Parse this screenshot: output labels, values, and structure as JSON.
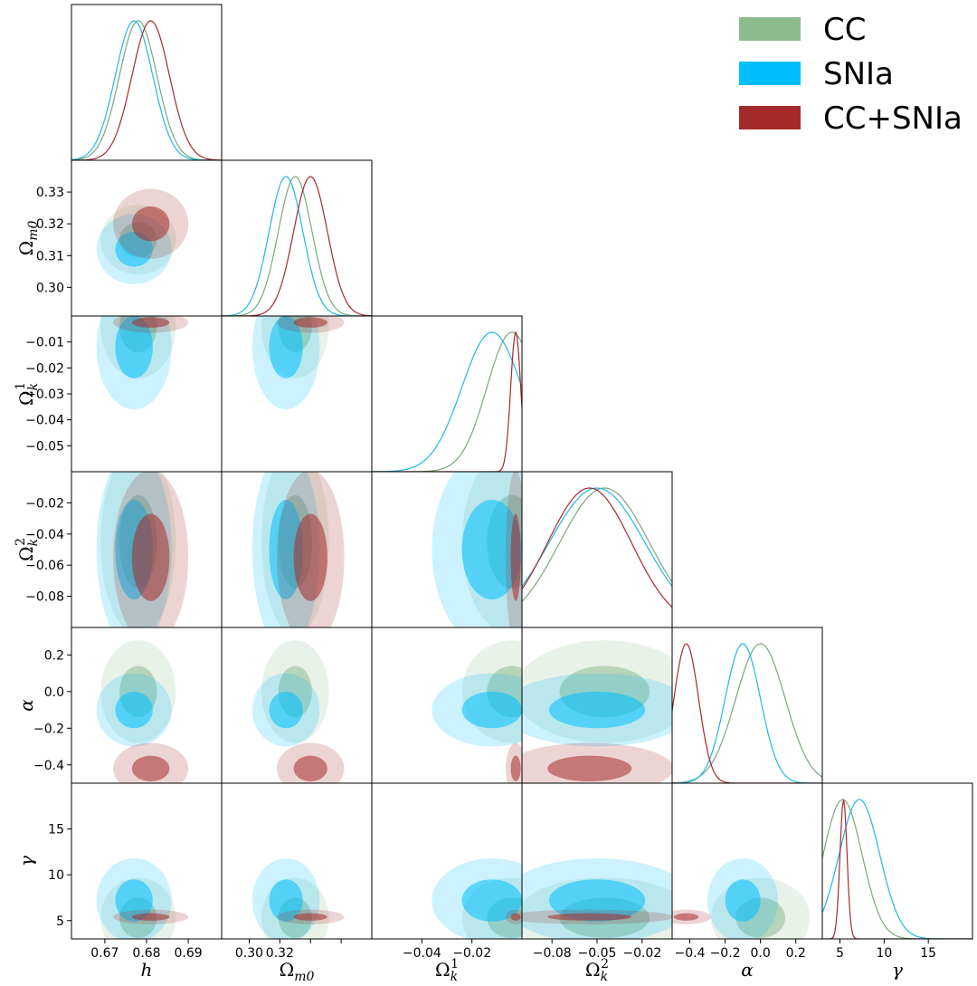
{
  "chart_data": {
    "type": "corner",
    "title": "",
    "parameters": [
      {
        "key": "h",
        "label": "h",
        "sub": "",
        "sup": "",
        "range": [
          0.662,
          0.698
        ],
        "ticks": [
          0.67,
          0.68,
          0.69
        ],
        "tick_labels": [
          "0.67",
          "0.68",
          "0.69"
        ]
      },
      {
        "key": "om",
        "label": "Ω",
        "sub": "m0",
        "sup": "",
        "range": [
          0.291,
          0.34
        ],
        "ticks": [
          0.3,
          0.31,
          0.32,
          0.33
        ],
        "tick_labels": [
          "0.30",
          "0.31",
          "0.32",
          "0.33"
        ],
        "x_tick_labels": [
          "0.30",
          "0.32"
        ]
      },
      {
        "key": "ok1",
        "label": "Ω",
        "sub": "k",
        "sup": "1",
        "range": [
          -0.06,
          0.0
        ],
        "ticks": [
          -0.05,
          -0.04,
          -0.03,
          -0.02,
          -0.01
        ],
        "tick_labels": [
          "−0.05",
          "−0.04",
          "−0.03",
          "−0.02",
          "−0.01"
        ],
        "x_ticks": [
          -0.04,
          -0.02
        ],
        "x_tick_labels": [
          "−0.04",
          "−0.02"
        ]
      },
      {
        "key": "ok2",
        "label": "Ω",
        "sub": "k",
        "sup": "2",
        "range": [
          -0.1,
          0.0
        ],
        "ticks": [
          -0.08,
          -0.06,
          -0.04,
          -0.02
        ],
        "tick_labels": [
          "−0.08",
          "−0.06",
          "−0.04",
          "−0.02"
        ],
        "x_ticks": [
          -0.08,
          -0.05,
          -0.02
        ],
        "x_tick_labels": [
          "−0.08",
          "−0.05",
          "−0.02"
        ]
      },
      {
        "key": "alpha",
        "label": "α",
        "sub": "",
        "sup": "",
        "range": [
          -0.5,
          0.35
        ],
        "ticks": [
          -0.4,
          -0.2,
          0.0,
          0.2
        ],
        "tick_labels": [
          "−0.4",
          "−0.2",
          "0.0",
          "0.2"
        ]
      },
      {
        "key": "gamma",
        "label": "γ",
        "sub": "",
        "sup": "",
        "range": [
          3.0,
          20.0
        ],
        "ticks": [
          5,
          10,
          15
        ],
        "tick_labels": [
          "5",
          "10",
          "15"
        ]
      }
    ],
    "series": [
      {
        "name": "CC",
        "color": "#8fbc8f",
        "line": "#7aa87a",
        "mean": {
          "h": 0.678,
          "om": 0.315,
          "ok1": -0.004,
          "ok2": -0.045,
          "alpha": 0.0,
          "gamma": 5.3
        },
        "sd": {
          "h": 0.0045,
          "om": 0.0055,
          "ok1": 0.01,
          "ok2": 0.03,
          "alpha": 0.14,
          "gamma": 2.2
        }
      },
      {
        "name": "SNIa",
        "color": "#00bfff",
        "line": "#1fb8e8",
        "mean": {
          "h": 0.677,
          "om": 0.312,
          "ok1": -0.012,
          "ok2": -0.05,
          "alpha": -0.1,
          "gamma": 7.2
        },
        "sd": {
          "h": 0.0045,
          "om": 0.0055,
          "ok1": 0.012,
          "ok2": 0.032,
          "alpha": 0.1,
          "gamma": 2.3
        }
      },
      {
        "name": "CC+SNIa",
        "color": "#a52a2a",
        "line": "#a52a2a",
        "mean": {
          "h": 0.681,
          "om": 0.32,
          "ok1": -0.0025,
          "ok2": -0.055,
          "alpha": -0.42,
          "gamma": 5.4
        },
        "sd": {
          "h": 0.0045,
          "om": 0.0055,
          "ok1": 0.002,
          "ok2": 0.028,
          "alpha": 0.07,
          "gamma": 0.4
        }
      }
    ],
    "legend": {
      "position": "top-right",
      "entries": [
        "CC",
        "SNIa",
        "CC+SNIa"
      ]
    }
  }
}
